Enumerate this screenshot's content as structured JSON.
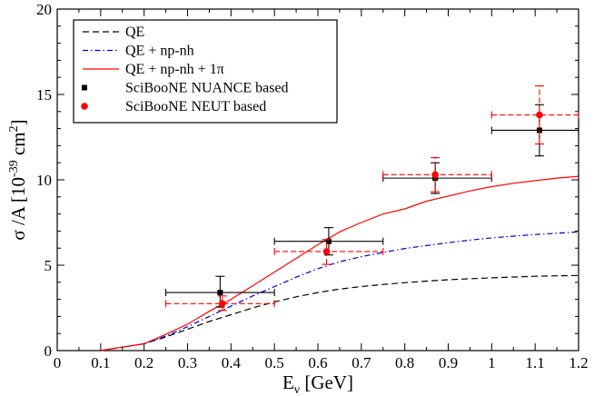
{
  "chart_data": {
    "type": "line",
    "xlabel_main": "E",
    "xlabel_sub": "ν",
    "xlabel_unit": " [GeV]",
    "ylabel_main": "σ /A [10",
    "ylabel_exp": "-39",
    "ylabel_unit": " cm",
    "ylabel_unit_exp": "2",
    "ylabel_close": "]",
    "xlim": [
      0,
      1.2
    ],
    "ylim": [
      0,
      20
    ],
    "x_ticks": [
      0,
      0.1,
      0.2,
      0.3,
      0.4,
      0.5,
      0.6,
      0.7,
      0.8,
      0.9,
      1,
      1.1,
      1.2
    ],
    "x_tick_labels": [
      "0",
      "0.1",
      "0.2",
      "0.3",
      "0.4",
      "0.5",
      "0.6",
      "0.7",
      "0.8",
      "0.9",
      "1",
      "1.1",
      "1.2"
    ],
    "y_ticks": [
      0,
      5,
      10,
      15,
      20
    ],
    "y_tick_labels": [
      "0",
      "5",
      "10",
      "15",
      "20"
    ],
    "series": [
      {
        "name": "QE",
        "style": "dashed",
        "color": "#000000",
        "x": [
          0.1,
          0.15,
          0.2,
          0.25,
          0.3,
          0.35,
          0.4,
          0.45,
          0.5,
          0.55,
          0.6,
          0.65,
          0.7,
          0.75,
          0.8,
          0.85,
          0.9,
          0.95,
          1.0,
          1.05,
          1.1,
          1.15,
          1.2
        ],
        "y": [
          0.0,
          0.2,
          0.4,
          0.8,
          1.25,
          1.7,
          2.1,
          2.5,
          2.85,
          3.15,
          3.4,
          3.6,
          3.75,
          3.87,
          3.98,
          4.07,
          4.15,
          4.21,
          4.26,
          4.31,
          4.35,
          4.38,
          4.4
        ]
      },
      {
        "name": "QE + np-nh",
        "style": "dashdot",
        "color": "#0000cc",
        "x": [
          0.1,
          0.15,
          0.2,
          0.25,
          0.3,
          0.35,
          0.4,
          0.45,
          0.5,
          0.55,
          0.6,
          0.65,
          0.7,
          0.75,
          0.8,
          0.85,
          0.9,
          0.95,
          1.0,
          1.05,
          1.1,
          1.15,
          1.2
        ],
        "y": [
          0.0,
          0.2,
          0.4,
          0.85,
          1.4,
          2.0,
          2.6,
          3.2,
          3.75,
          4.3,
          4.8,
          5.2,
          5.5,
          5.75,
          5.98,
          6.15,
          6.32,
          6.47,
          6.6,
          6.7,
          6.8,
          6.87,
          6.95
        ]
      },
      {
        "name": "QE + np-nh + 1π",
        "style": "solid",
        "color": "#ff0000",
        "x": [
          0.1,
          0.15,
          0.2,
          0.25,
          0.3,
          0.35,
          0.4,
          0.45,
          0.5,
          0.55,
          0.6,
          0.65,
          0.7,
          0.75,
          0.8,
          0.85,
          0.9,
          0.95,
          1.0,
          1.05,
          1.1,
          1.15,
          1.2
        ],
        "y": [
          0.0,
          0.2,
          0.4,
          0.95,
          1.55,
          2.3,
          3.0,
          3.8,
          4.6,
          5.4,
          6.2,
          6.95,
          7.5,
          8.0,
          8.3,
          8.75,
          9.05,
          9.35,
          9.6,
          9.8,
          9.95,
          10.1,
          10.2
        ]
      }
    ],
    "points": [
      {
        "name": "SciBooNE NUANCE based",
        "color": "#000000",
        "marker": "square",
        "errorbar_style": "solid",
        "data": [
          {
            "x": 0.375,
            "y": 3.4,
            "xerr": [
              0.25,
              0.5
            ],
            "yerr": [
              2.55,
              4.35
            ]
          },
          {
            "x": 0.625,
            "y": 6.4,
            "xerr": [
              0.5,
              0.75
            ],
            "yerr": [
              5.6,
              7.2
            ]
          },
          {
            "x": 0.87,
            "y": 10.1,
            "xerr": [
              0.75,
              1.0
            ],
            "yerr": [
              9.2,
              11.0
            ]
          },
          {
            "x": 1.11,
            "y": 12.9,
            "xerr": [
              1.0,
              1.2
            ],
            "yerr": [
              11.4,
              14.4
            ]
          }
        ]
      },
      {
        "name": "SciBooNE NEUT based",
        "color": "#ff0000",
        "marker": "circle",
        "errorbar_style": "dashed",
        "data": [
          {
            "x": 0.38,
            "y": 2.75,
            "xerr": [
              0.25,
              0.5
            ],
            "yerr": [
              2.35,
              3.2
            ]
          },
          {
            "x": 0.62,
            "y": 5.8,
            "xerr": [
              0.5,
              0.75
            ],
            "yerr": [
              5.05,
              6.5
            ]
          },
          {
            "x": 0.87,
            "y": 10.3,
            "xerr": [
              0.75,
              1.0
            ],
            "yerr": [
              9.3,
              11.3
            ]
          },
          {
            "x": 1.11,
            "y": 13.8,
            "xerr": [
              1.0,
              1.2
            ],
            "yerr": [
              12.1,
              15.5
            ]
          }
        ]
      }
    ],
    "legend": [
      {
        "label_main": "QE",
        "label_greek": "",
        "kind": "line",
        "style": "dashed",
        "color": "#000000"
      },
      {
        "label_main": "QE + np-nh",
        "label_greek": "",
        "kind": "line",
        "style": "dashdot",
        "color": "#0000cc"
      },
      {
        "label_main": "QE + np-nh + 1",
        "label_greek": "π",
        "kind": "line",
        "style": "solid",
        "color": "#ff0000"
      },
      {
        "label_main": "SciBooNE NUANCE based",
        "label_greek": "",
        "kind": "square",
        "color": "#000000"
      },
      {
        "label_main": "SciBooNE NEUT based",
        "label_greek": "",
        "kind": "circle",
        "color": "#ff0000"
      }
    ],
    "legend_position": "top-left"
  }
}
